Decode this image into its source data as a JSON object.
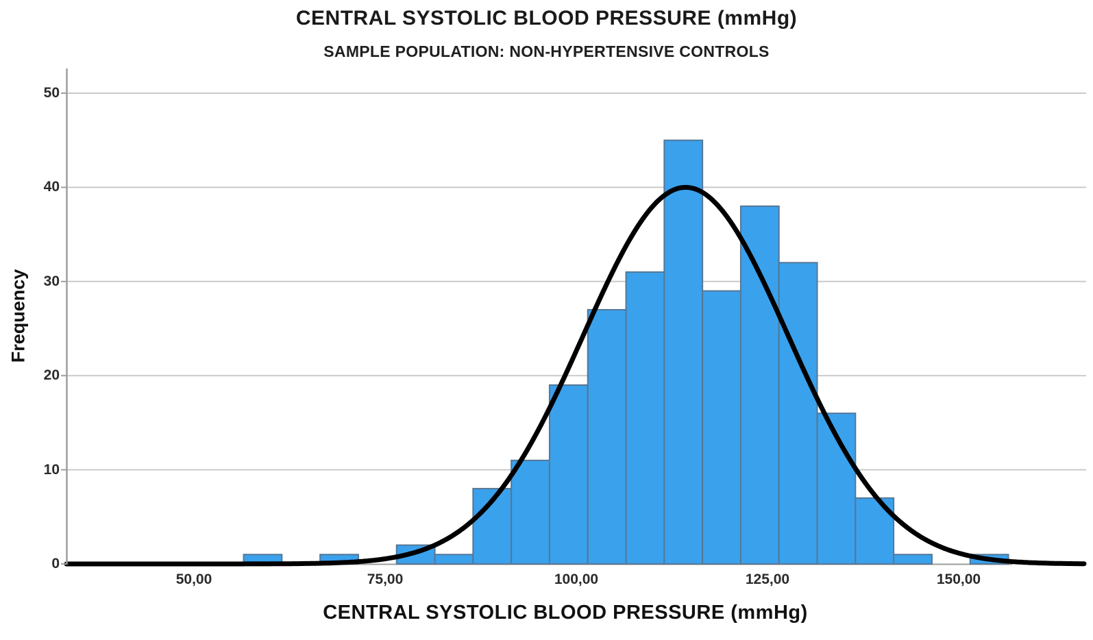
{
  "header": {
    "title": "CENTRAL SYSTOLIC BLOOD PRESSURE (mmHg)",
    "subtitle": "SAMPLE POPULATION: NON-HYPERTENSIVE CONTROLS"
  },
  "chart_data": {
    "type": "histogram",
    "title": "CENTRAL SYSTOLIC BLOOD PRESSURE (mmHg)",
    "subtitle": "SAMPLE POPULATION: NON-HYPERTENSIVE CONTROLS",
    "xlabel": "CENTRAL SYSTOLIC BLOOD PRESSURE (mmHg)",
    "ylabel": "Frequency",
    "bin_width_mmHg": 5,
    "bins": [
      {
        "center": 59,
        "count": 1
      },
      {
        "center": 64,
        "count": 0
      },
      {
        "center": 69,
        "count": 1
      },
      {
        "center": 74,
        "count": 0
      },
      {
        "center": 79,
        "count": 2
      },
      {
        "center": 84,
        "count": 1
      },
      {
        "center": 89,
        "count": 8
      },
      {
        "center": 94,
        "count": 11
      },
      {
        "center": 99,
        "count": 19
      },
      {
        "center": 104,
        "count": 27
      },
      {
        "center": 109,
        "count": 31
      },
      {
        "center": 114,
        "count": 45
      },
      {
        "center": 119,
        "count": 29
      },
      {
        "center": 124,
        "count": 38
      },
      {
        "center": 129,
        "count": 32
      },
      {
        "center": 134,
        "count": 16
      },
      {
        "center": 139,
        "count": 7
      },
      {
        "center": 144,
        "count": 1
      },
      {
        "center": 149,
        "count": 0
      },
      {
        "center": 154,
        "count": 1
      }
    ],
    "normal_curve": {
      "mean": 114.3,
      "sd": 13.4,
      "peak": 40
    },
    "x_ticks": [
      {
        "value": 50,
        "label": "50,00"
      },
      {
        "value": 75,
        "label": "75,00"
      },
      {
        "value": 100,
        "label": "100,00"
      },
      {
        "value": 125,
        "label": "125,00"
      },
      {
        "value": 150,
        "label": "150,00"
      }
    ],
    "y_ticks": [
      {
        "value": 0,
        "label": "0"
      },
      {
        "value": 10,
        "label": "10"
      },
      {
        "value": 20,
        "label": "20"
      },
      {
        "value": 30,
        "label": "30"
      },
      {
        "value": 40,
        "label": "40"
      },
      {
        "value": 50,
        "label": "50"
      }
    ],
    "ylim": [
      0,
      52
    ],
    "xlim": [
      33,
      167
    ],
    "grid": "horizontal gridlines at 10,20,30,40,50",
    "legend": "none"
  },
  "colors": {
    "bar_fill": "#3AA1ED",
    "bar_border": "#557795",
    "curve": "#000000",
    "gridline": "#CACACA",
    "axis": "#9E9E9E",
    "title_text": "#1A1A1A",
    "tick_text": "#2B2B2B",
    "background": "#FFFFFF"
  }
}
